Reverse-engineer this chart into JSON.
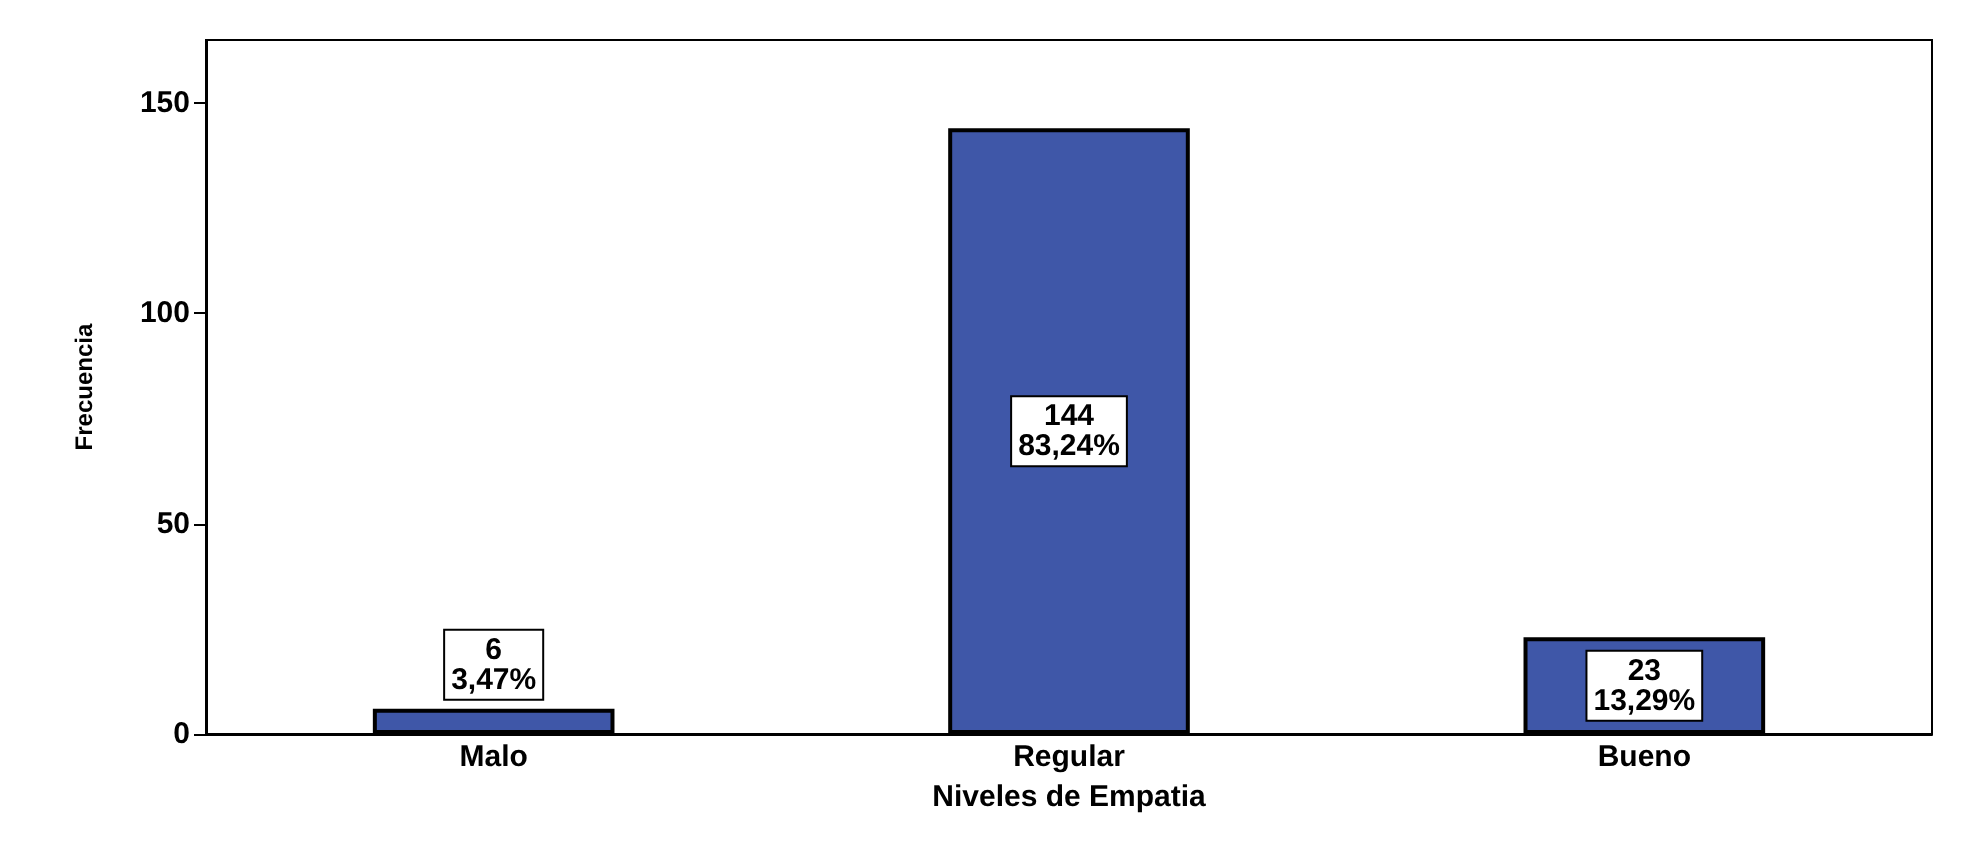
{
  "chart_data": {
    "type": "bar",
    "xlabel": "Niveles de Empatia",
    "ylabel": "Frecuencia",
    "categories": [
      "Malo",
      "Regular",
      "Bueno"
    ],
    "values": [
      6,
      144,
      23
    ],
    "value_labels": [
      "6\n3,47%",
      "144\n83,24%",
      "23\n13,29%"
    ],
    "color": "#3f57a8",
    "ylim": [
      0,
      165
    ],
    "yticks": [
      0,
      50,
      100,
      150
    ],
    "grid": false
  }
}
